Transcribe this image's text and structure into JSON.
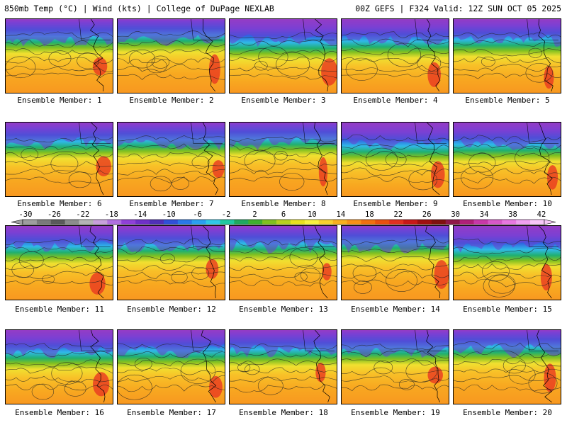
{
  "header": {
    "left": "850mb Temp (°C) | Wind (kts) | College of DuPage NEXLAB",
    "right": "00Z GEFS | F324 Valid: 12Z SUN OCT 05 2025"
  },
  "panels": [
    {
      "label": "Ensemble Member: 1"
    },
    {
      "label": "Ensemble Member: 2"
    },
    {
      "label": "Ensemble Member: 3"
    },
    {
      "label": "Ensemble Member: 4"
    },
    {
      "label": "Ensemble Member: 5"
    },
    {
      "label": "Ensemble Member: 6"
    },
    {
      "label": "Ensemble Member: 7"
    },
    {
      "label": "Ensemble Member: 8"
    },
    {
      "label": "Ensemble Member: 9"
    },
    {
      "label": "Ensemble Member: 10"
    },
    {
      "label": "Ensemble Member: 11"
    },
    {
      "label": "Ensemble Member: 12"
    },
    {
      "label": "Ensemble Member: 13"
    },
    {
      "label": "Ensemble Member: 14"
    },
    {
      "label": "Ensemble Member: 15"
    },
    {
      "label": "Ensemble Member: 16"
    },
    {
      "label": "Ensemble Member: 17"
    },
    {
      "label": "Ensemble Member: 18"
    },
    {
      "label": "Ensemble Member: 19"
    },
    {
      "label": "Ensemble Member: 20"
    }
  ],
  "colorbar": {
    "ticks": [
      "-30",
      "-26",
      "-22",
      "-18",
      "-14",
      "-10",
      "-6",
      "-2",
      "2",
      "6",
      "10",
      "14",
      "18",
      "22",
      "26",
      "30",
      "34",
      "38",
      "42"
    ],
    "colors": [
      "#9e9e9e",
      "#7a7a7a",
      "#5a5a5a",
      "#8c8c8c",
      "#b4b4b4",
      "#c8a0dc",
      "#b070e0",
      "#9040d8",
      "#7030c8",
      "#5030b8",
      "#3050d8",
      "#2a78e8",
      "#2aa0f0",
      "#30c8e8",
      "#20c8a0",
      "#20a860",
      "#40b030",
      "#80c020",
      "#b8d020",
      "#e8e020",
      "#f8f040",
      "#f8d030",
      "#f8b020",
      "#f89018",
      "#f07010",
      "#e85010",
      "#e03020",
      "#c81818",
      "#a01010",
      "#801010",
      "#901848",
      "#b02078",
      "#c838a8",
      "#d858c8",
      "#e878e0",
      "#f0a0f0",
      "#f8c8f8"
    ]
  }
}
